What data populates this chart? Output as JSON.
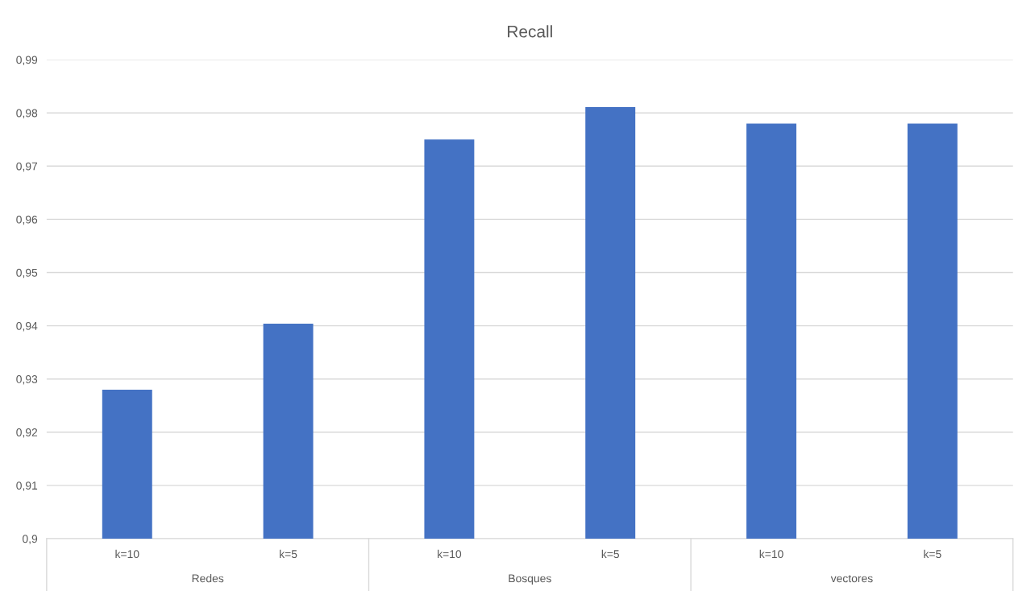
{
  "chart_data": {
    "type": "bar",
    "title": "Recall",
    "categories": [
      "k=10",
      "k=5",
      "k=10",
      "k=5",
      "k=10",
      "k=5"
    ],
    "values": [
      0.928,
      0.9404,
      0.975,
      0.9811,
      0.978,
      0.978
    ],
    "color": "#4472c4",
    "ylim": [
      0.9,
      0.99
    ],
    "yticks": [
      {
        "value": 0.9,
        "label": "0,9"
      },
      {
        "value": 0.91,
        "label": "0,91"
      },
      {
        "value": 0.92,
        "label": "0,92"
      },
      {
        "value": 0.93,
        "label": "0,93"
      },
      {
        "value": 0.94,
        "label": "0,94"
      },
      {
        "value": 0.95,
        "label": "0,95"
      },
      {
        "value": 0.96,
        "label": "0,96"
      },
      {
        "value": 0.97,
        "label": "0,97"
      },
      {
        "value": 0.98,
        "label": "0,98"
      },
      {
        "value": 0.99,
        "label": "0,99"
      }
    ],
    "grid": "y",
    "annotations": [
      "Redes",
      "Bosques",
      "vectores"
    ]
  }
}
